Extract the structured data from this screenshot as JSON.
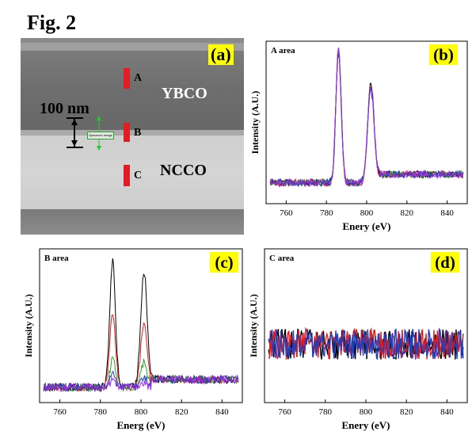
{
  "figure": {
    "title": "Fig. 2"
  },
  "panel_a": {
    "label": "(a)",
    "layer_top": "YBCO",
    "layer_bottom": "NCCO",
    "scale_bar": "100 nm",
    "markers": [
      "A",
      "B",
      "C"
    ],
    "tiny_label": "Specimen Image",
    "colors": {
      "marker": "#e31b23",
      "label_bg": "#ffff00",
      "scale_green": "#22cc22"
    }
  },
  "chart_data": [
    {
      "id": "b",
      "type": "line",
      "panel_label": "(b)",
      "area_label": "A area",
      "xlabel": "Enery (eV)",
      "ylabel": "Intensity (A.U.)",
      "xlim": [
        750,
        850
      ],
      "ylim": [
        0,
        100
      ],
      "xticks": [
        760,
        780,
        800,
        820,
        840
      ],
      "series_colors": [
        "#000000",
        "#e41a1c",
        "#2ca02c",
        "#1f3fbf",
        "#a020f0"
      ],
      "peaks": [
        {
          "center": 786,
          "heights": [
            95,
            96,
            94,
            93,
            95
          ],
          "width": 1.3
        },
        {
          "center": 802,
          "heights": [
            74,
            73,
            72,
            71,
            73
          ],
          "width": 1.5
        }
      ],
      "baseline": 13,
      "noise": 2.2,
      "step_height": 5,
      "step_at": 803
    },
    {
      "id": "c",
      "type": "line",
      "panel_label": "(c)",
      "area_label": "B area",
      "xlabel": "Energ (eV)",
      "ylabel": "Intensity (A.U.)",
      "xlim": [
        750,
        850
      ],
      "ylim": [
        0,
        100
      ],
      "xticks": [
        760,
        780,
        800,
        820,
        840
      ],
      "series_colors": [
        "#000000",
        "#e41a1c",
        "#2ca02c",
        "#1f3fbf",
        "#a020f0"
      ],
      "peaks": [
        {
          "center": 786,
          "heights": [
            92,
            58,
            28,
            18,
            14
          ],
          "width": 1.4
        },
        {
          "center": 801.5,
          "heights": [
            86,
            52,
            26,
            16,
            12
          ],
          "width": 1.6
        }
      ],
      "baseline": 10,
      "noise": 2.6,
      "step_height": 5,
      "step_at": 805
    },
    {
      "id": "d",
      "type": "line",
      "panel_label": "(d)",
      "area_label": "C area",
      "xlabel": "Enery (eV)",
      "ylabel": "Intensity (A.U.)",
      "xlim": [
        750,
        850
      ],
      "ylim": [
        0,
        100
      ],
      "xticks": [
        760,
        780,
        800,
        820,
        840
      ],
      "series_colors": [
        "#000000",
        "#e41a1c",
        "#1f3fbf"
      ],
      "peaks": [],
      "baseline": 38,
      "noise": 10,
      "step_height": 0,
      "step_at": 800
    }
  ]
}
